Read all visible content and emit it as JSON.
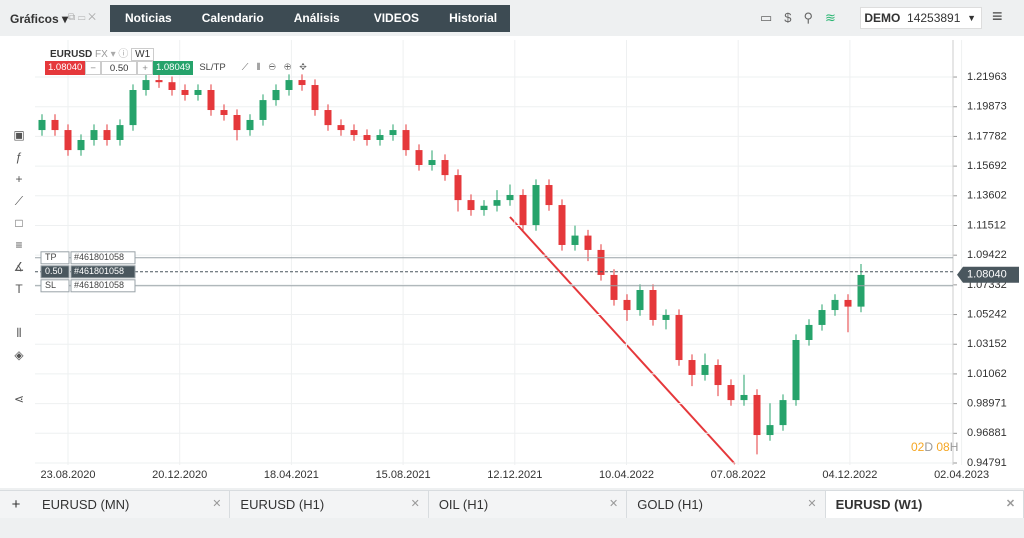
{
  "nav": {
    "menu": "Gráficos",
    "tabs": [
      "Noticias",
      "Calendario",
      "Análisis de mercado",
      "VIDEOS",
      "Historial"
    ],
    "account_type": "DEMO",
    "account_id": "14253891"
  },
  "toolbar": {
    "symbol": "EURUSD",
    "market": "FX",
    "timeframe": "W1",
    "sell_price": "1.08040",
    "volume": "0.50",
    "buy_price": "1.08049",
    "sltp": "SL/TP"
  },
  "orders": [
    {
      "kind": "TP",
      "id": "#461801058"
    },
    {
      "kind": "0.50",
      "id": "#461801058"
    },
    {
      "kind": "SL",
      "id": "#461801058"
    }
  ],
  "chart": {
    "type": "candlestick",
    "up_color": "#26a36b",
    "down_color": "#e5383b",
    "ylim": [
      0.9465,
      1.2457
    ],
    "yticks": [
      1.21963,
      1.19873,
      1.17782,
      1.15692,
      1.13602,
      1.11512,
      1.09422,
      1.07332,
      1.05242,
      1.03152,
      1.01062,
      0.98971,
      0.96881,
      0.94791
    ],
    "xticks": [
      "23.08.2020",
      "20.12.2020",
      "18.04.2021",
      "15.08.2021",
      "12.12.2021",
      "10.04.2022",
      "07.08.2022",
      "04.12.2022",
      "02.04.2023"
    ],
    "current_price": "1.08040",
    "countdown": [
      "02",
      "D",
      "08",
      "H"
    ],
    "candles": [
      [
        1.1823,
        1.1934,
        1.1783,
        1.1894
      ],
      [
        1.1894,
        1.1934,
        1.1783,
        1.1823
      ],
      [
        1.1823,
        1.1863,
        1.1642,
        1.1682
      ],
      [
        1.1682,
        1.1793,
        1.1642,
        1.1753
      ],
      [
        1.1753,
        1.1863,
        1.1713,
        1.1823
      ],
      [
        1.1823,
        1.1863,
        1.1713,
        1.1753
      ],
      [
        1.1753,
        1.1898,
        1.1713,
        1.1858
      ],
      [
        1.1858,
        1.2145,
        1.1818,
        1.2105
      ],
      [
        1.2105,
        1.2215,
        1.2065,
        1.2175
      ],
      [
        1.2175,
        1.2215,
        1.212,
        1.216
      ],
      [
        1.216,
        1.22,
        1.2065,
        1.2105
      ],
      [
        1.2105,
        1.2145,
        1.203,
        1.207
      ],
      [
        1.207,
        1.2145,
        1.203,
        1.2105
      ],
      [
        1.2105,
        1.2145,
        1.1924,
        1.1964
      ],
      [
        1.1964,
        1.2004,
        1.1889,
        1.1929
      ],
      [
        1.1929,
        1.1969,
        1.175,
        1.1823
      ],
      [
        1.1823,
        1.1934,
        1.1783,
        1.1894
      ],
      [
        1.1894,
        1.2074,
        1.1854,
        1.2034
      ],
      [
        1.2034,
        1.2145,
        1.1994,
        1.2105
      ],
      [
        1.2105,
        1.2215,
        1.2065,
        1.2175
      ],
      [
        1.2175,
        1.2215,
        1.21,
        1.214
      ],
      [
        1.214,
        1.218,
        1.1924,
        1.1964
      ],
      [
        1.1964,
        1.2004,
        1.1818,
        1.1858
      ],
      [
        1.1858,
        1.1898,
        1.1783,
        1.1823
      ],
      [
        1.1823,
        1.1863,
        1.1748,
        1.1788
      ],
      [
        1.1788,
        1.1828,
        1.1713,
        1.1753
      ],
      [
        1.1753,
        1.1828,
        1.1713,
        1.1788
      ],
      [
        1.1788,
        1.1863,
        1.1748,
        1.1823
      ],
      [
        1.1823,
        1.1863,
        1.1642,
        1.1682
      ],
      [
        1.1682,
        1.1722,
        1.1537,
        1.1577
      ],
      [
        1.1577,
        1.168,
        1.1537,
        1.1612
      ],
      [
        1.1612,
        1.1652,
        1.1466,
        1.1506
      ],
      [
        1.1506,
        1.1546,
        1.125,
        1.133
      ],
      [
        1.133,
        1.137,
        1.122,
        1.126
      ],
      [
        1.126,
        1.133,
        1.122,
        1.129
      ],
      [
        1.129,
        1.14,
        1.125,
        1.133
      ],
      [
        1.133,
        1.144,
        1.129,
        1.1366
      ],
      [
        1.1366,
        1.1406,
        1.1114,
        1.1154
      ],
      [
        1.1154,
        1.1476,
        1.1114,
        1.1436
      ],
      [
        1.1436,
        1.1476,
        1.1255,
        1.1295
      ],
      [
        1.1295,
        1.1335,
        1.0974,
        1.1014
      ],
      [
        1.1014,
        1.115,
        1.0974,
        1.108
      ],
      [
        1.108,
        1.112,
        1.09,
        1.0979
      ],
      [
        1.0979,
        1.1019,
        1.0763,
        1.0803
      ],
      [
        1.0803,
        1.0843,
        1.0587,
        1.0627
      ],
      [
        1.0627,
        1.0667,
        1.048,
        1.0556
      ],
      [
        1.0556,
        1.0737,
        1.0516,
        1.0697
      ],
      [
        1.0697,
        1.0737,
        1.0446,
        1.0486
      ],
      [
        1.0486,
        1.0561,
        1.042,
        1.0521
      ],
      [
        1.0521,
        1.0561,
        1.0164,
        1.0204
      ],
      [
        1.0204,
        1.0244,
        1.002,
        1.0099
      ],
      [
        1.0099,
        1.025,
        1.0059,
        1.0169
      ],
      [
        1.0169,
        1.0209,
        0.995,
        1.0028
      ],
      [
        1.0028,
        1.0068,
        0.9882,
        0.9922
      ],
      [
        0.9922,
        1.01,
        0.9882,
        0.9958
      ],
      [
        0.9958,
        0.9998,
        0.954,
        0.9676
      ],
      [
        0.9676,
        0.99,
        0.9636,
        0.9746
      ],
      [
        0.9746,
        0.9962,
        0.9706,
        0.9922
      ],
      [
        0.9922,
        1.0385,
        0.9882,
        1.0345
      ],
      [
        1.0345,
        1.0491,
        1.0305,
        1.0451
      ],
      [
        1.0451,
        1.0596,
        1.0411,
        1.0556
      ],
      [
        1.0556,
        1.0667,
        1.0516,
        1.0627
      ],
      [
        1.0627,
        1.0667,
        1.04,
        1.058
      ],
      [
        1.058,
        1.088,
        1.054,
        1.0803
      ]
    ]
  },
  "bottom_tabs": [
    "EURUSD (MN)",
    "EURUSD (H1)",
    "OIL (H1)",
    "GOLD (H1)",
    "EURUSD (W1)"
  ]
}
